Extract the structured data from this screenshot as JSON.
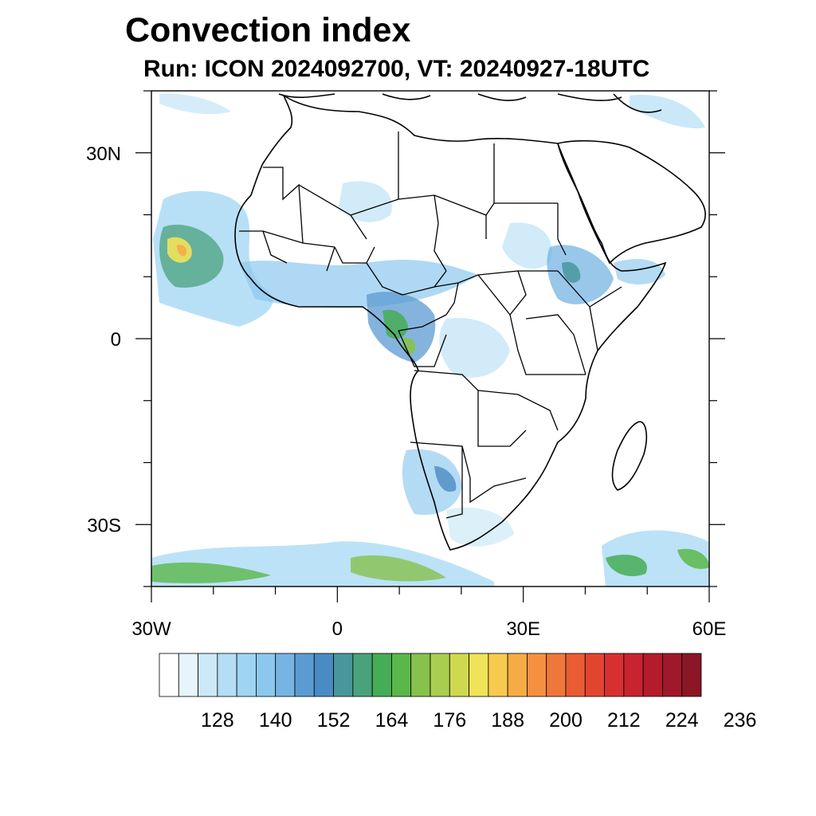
{
  "title": "Convection index",
  "subtitle": "Run: ICON 2024092700,  VT: 20240927-18UTC",
  "map": {
    "lon_range": [
      -30,
      60
    ],
    "lat_range": [
      -40,
      40
    ],
    "lon_ticks": [
      {
        "value": -30,
        "label": "30W"
      },
      {
        "value": 0,
        "label": "0"
      },
      {
        "value": 30,
        "label": "30E"
      },
      {
        "value": 60,
        "label": "60E"
      }
    ],
    "lat_ticks": [
      {
        "value": 30,
        "label": "30N"
      },
      {
        "value": 0,
        "label": "0"
      },
      {
        "value": -30,
        "label": "30S"
      }
    ]
  },
  "colorbar": {
    "colors": [
      "#ffffff",
      "#e6f4fc",
      "#cce9f7",
      "#b3def5",
      "#9fd5f3",
      "#8cc8ee",
      "#76b4e3",
      "#5b9bd2",
      "#4a8bc3",
      "#47979c",
      "#4aa27c",
      "#45ad55",
      "#5ab84a",
      "#86c24c",
      "#a9cd4f",
      "#cfd94f",
      "#efe35a",
      "#f7ca4f",
      "#f6ac45",
      "#f59040",
      "#f0773b",
      "#e95c34",
      "#e2452f",
      "#d83031",
      "#c8232f",
      "#b41b2c",
      "#a0182b",
      "#8a1626"
    ],
    "labels": [
      "128",
      "140",
      "152",
      "164",
      "176",
      "188",
      "200",
      "212",
      "224",
      "236"
    ]
  }
}
